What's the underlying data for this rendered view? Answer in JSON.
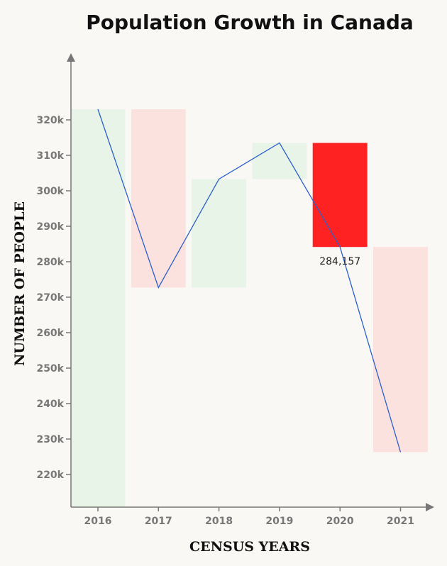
{
  "chart_data": {
    "type": "bar",
    "subtype": "waterfall",
    "title": "Population Growth in Canada",
    "xlabel": "CENSUS YEARS",
    "ylabel": "NUMBER OF PEOPLE",
    "categories": [
      "2016",
      "2017",
      "2018",
      "2019",
      "2020",
      "2021"
    ],
    "values": [
      323000,
      272700,
      303300,
      313500,
      284157,
      226300
    ],
    "start_value": 210800,
    "ylim": [
      210800,
      330000
    ],
    "yticks": [
      220000,
      230000,
      240000,
      250000,
      260000,
      270000,
      280000,
      290000,
      300000,
      310000,
      320000
    ],
    "ytick_labels": [
      "220k",
      "230k",
      "240k",
      "250k",
      "260k",
      "270k",
      "280k",
      "290k",
      "300k",
      "310k",
      "320k"
    ],
    "highlight_category": "2020",
    "annotations": [
      {
        "category": "2020",
        "text": "284,157"
      }
    ],
    "colors": {
      "increase": "#e8f4e8",
      "decrease": "#fce2df",
      "highlight": "#ff2222",
      "line": "#2a5fd0",
      "axis": "#777777"
    },
    "grid": false,
    "legend": "none"
  }
}
